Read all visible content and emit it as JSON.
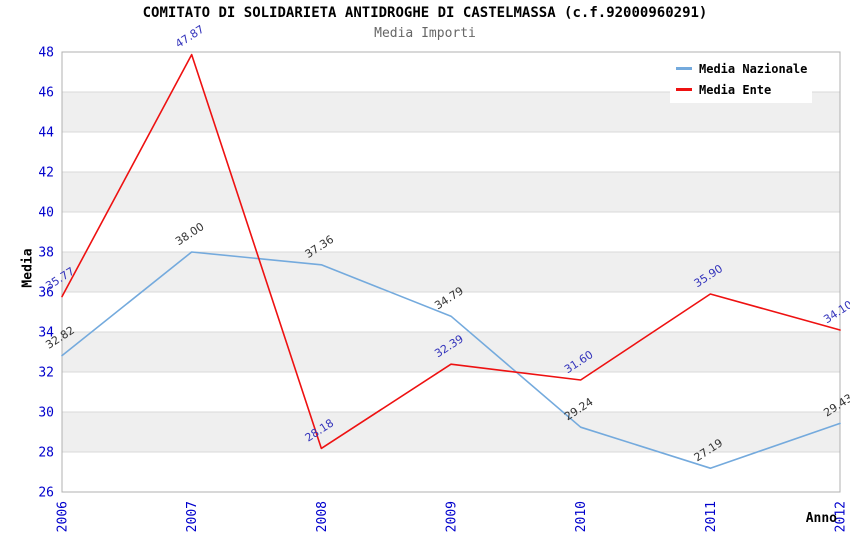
{
  "chart_data": {
    "type": "line",
    "title": "COMITATO DI SOLIDARIETA ANTIDROGHE DI CASTELMASSA (c.f.92000960291)",
    "subtitle": "Media Importi",
    "xlabel": "Anno",
    "ylabel": "Media",
    "categories": [
      "2006",
      "2007",
      "2008",
      "2009",
      "2010",
      "2011",
      "2012"
    ],
    "series": [
      {
        "name": "Media Nazionale",
        "color": "#74aadd",
        "label_color": "#333333",
        "values": [
          32.82,
          38.0,
          37.36,
          34.79,
          29.24,
          27.19,
          29.43
        ]
      },
      {
        "name": "Media Ente",
        "color": "#ee1111",
        "label_color": "#3333bb",
        "values": [
          35.77,
          47.87,
          28.18,
          32.39,
          31.6,
          35.9,
          34.1
        ]
      }
    ],
    "ylim": [
      26,
      48
    ],
    "ytick_step": 2,
    "grid": "horizontal-bands-alternating",
    "legend_position": "top-right",
    "style": {
      "band_color": "#efefef",
      "grid_color": "#d9d9d9",
      "spine_color": "#b0b0b0",
      "tick_label_color": "#0000cc",
      "point_label_rotation_deg": -33
    }
  }
}
